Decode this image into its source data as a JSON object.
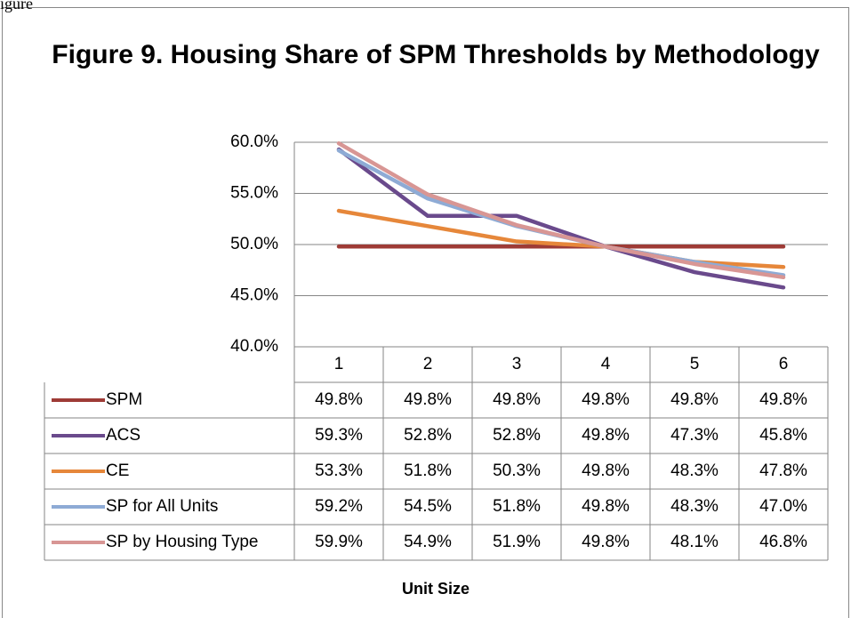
{
  "caption": "igure",
  "chart_data": {
    "type": "line",
    "title": "Figure 9. Housing Share of SPM Thresholds by Methodology",
    "x_label": "Unit Size",
    "categories": [
      "1",
      "2",
      "3",
      "4",
      "5",
      "6"
    ],
    "ylim": [
      40,
      60
    ],
    "yticks": [
      {
        "value": 40,
        "label": "40.0%"
      },
      {
        "value": 45,
        "label": "45.0%"
      },
      {
        "value": 50,
        "label": "50.0%"
      },
      {
        "value": 55,
        "label": "55.0%"
      },
      {
        "value": 60,
        "label": "60.0%"
      }
    ],
    "grid": true,
    "data_table": true,
    "series": [
      {
        "name": "SPM",
        "color": "#9e3b36",
        "values": [
          49.8,
          49.8,
          49.8,
          49.8,
          49.8,
          49.8
        ],
        "value_labels": [
          "49.8%",
          "49.8%",
          "49.8%",
          "49.8%",
          "49.8%",
          "49.8%"
        ]
      },
      {
        "name": "ACS",
        "color": "#6a4a8c",
        "values": [
          59.3,
          52.8,
          52.8,
          49.8,
          47.3,
          45.8
        ],
        "value_labels": [
          "59.3%",
          "52.8%",
          "52.8%",
          "49.8%",
          "47.3%",
          "45.8%"
        ]
      },
      {
        "name": "CE",
        "color": "#e6873a",
        "values": [
          53.3,
          51.8,
          50.3,
          49.8,
          48.3,
          47.8
        ],
        "value_labels": [
          "53.3%",
          "51.8%",
          "50.3%",
          "49.8%",
          "48.3%",
          "47.8%"
        ]
      },
      {
        "name": "SP for All Units",
        "color": "#8eabd5",
        "values": [
          59.2,
          54.5,
          51.8,
          49.8,
          48.3,
          47.0
        ],
        "value_labels": [
          "59.2%",
          "54.5%",
          "51.8%",
          "49.8%",
          "48.3%",
          "47.0%"
        ]
      },
      {
        "name": "SP by Housing Type",
        "color": "#d89694",
        "values": [
          59.9,
          54.9,
          51.9,
          49.8,
          48.1,
          46.8
        ],
        "value_labels": [
          "59.9%",
          "54.9%",
          "51.9%",
          "49.8%",
          "48.1%",
          "46.8%"
        ]
      }
    ]
  }
}
